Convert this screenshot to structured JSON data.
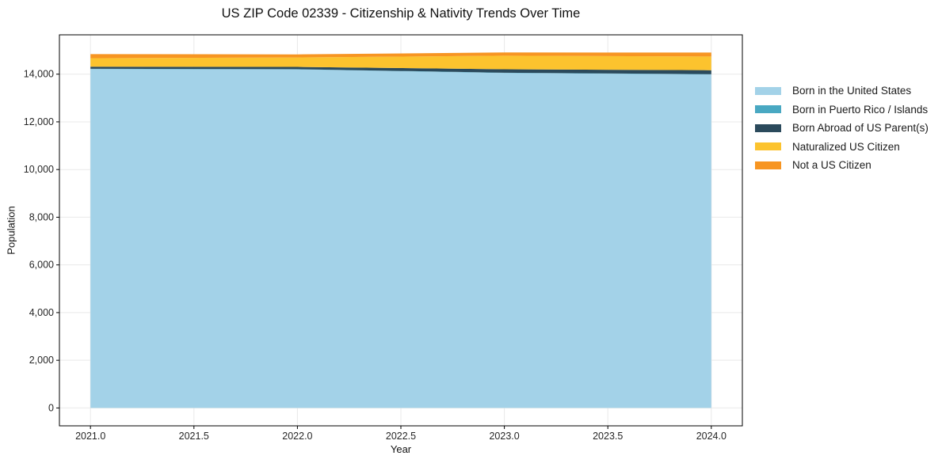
{
  "chart_data": {
    "type": "area",
    "stacked": true,
    "title": "US ZIP Code 02339 - Citizenship & Nativity Trends Over Time",
    "xlabel": "Year",
    "ylabel": "Population",
    "x": [
      2021,
      2022,
      2023,
      2024
    ],
    "series": [
      {
        "name": "Born in the United States",
        "color": "#a3d2e8",
        "values": [
          14215,
          14200,
          14050,
          13990
        ]
      },
      {
        "name": "Born in Puerto Rico / Islands",
        "color": "#49a8c2",
        "values": [
          10,
          10,
          10,
          10
        ]
      },
      {
        "name": "Born Abroad of US Parent(s)",
        "color": "#2b4a5c",
        "values": [
          90,
          95,
          145,
          165
        ]
      },
      {
        "name": "Naturalized US Citizen",
        "color": "#fcc32e",
        "values": [
          355,
          395,
          570,
          575
        ]
      },
      {
        "name": "Not a US Citizen",
        "color": "#f79522",
        "values": [
          170,
          130,
          135,
          165
        ]
      }
    ],
    "xlim": [
      2020.85,
      2024.15
    ],
    "ylim": [
      -750,
      15650
    ],
    "xticks": [
      {
        "value": 2021.0,
        "label": "2021.0"
      },
      {
        "value": 2021.5,
        "label": "2021.5"
      },
      {
        "value": 2022.0,
        "label": "2022.0"
      },
      {
        "value": 2022.5,
        "label": "2022.5"
      },
      {
        "value": 2023.0,
        "label": "2023.0"
      },
      {
        "value": 2023.5,
        "label": "2023.5"
      },
      {
        "value": 2024.0,
        "label": "2024.0"
      }
    ],
    "yticks": [
      {
        "value": 0,
        "label": "0"
      },
      {
        "value": 2000,
        "label": "2,000"
      },
      {
        "value": 4000,
        "label": "4,000"
      },
      {
        "value": 6000,
        "label": "6,000"
      },
      {
        "value": 8000,
        "label": "8,000"
      },
      {
        "value": 10000,
        "label": "10,000"
      },
      {
        "value": 12000,
        "label": "12,000"
      },
      {
        "value": 14000,
        "label": "14,000"
      }
    ],
    "grid": true,
    "grid_color": "#e9e9e9",
    "spine_color": "#000000",
    "tick_label_color": "#262626",
    "legend_position": "right-outside"
  }
}
